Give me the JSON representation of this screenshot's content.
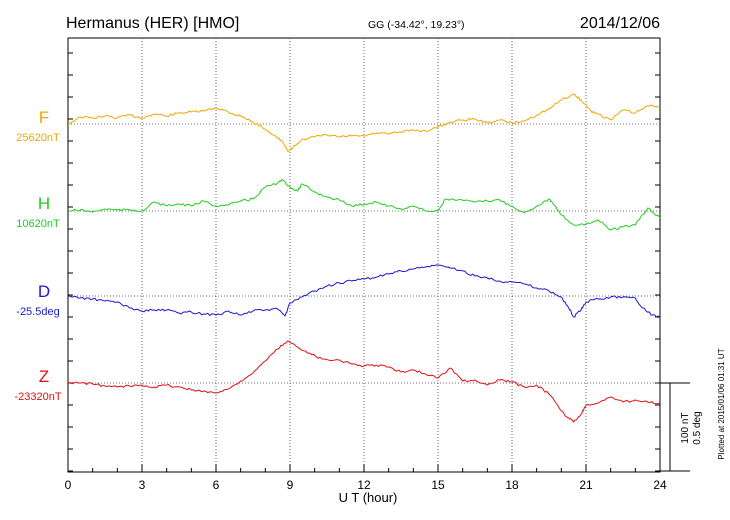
{
  "header": {
    "station": "Hermanus (HER)  [HMO]",
    "coords": "GG (-34.42°,  19.23°)",
    "date": "2014/12/06"
  },
  "side_note": "Plotted at 2015/01/06 01:31  UT",
  "chart_data": {
    "type": "line",
    "xlabel": "U T (hour)",
    "xlim": [
      0,
      24
    ],
    "xticks": [
      "0",
      "3",
      "6",
      "9",
      "12",
      "15",
      "18",
      "21",
      "24"
    ],
    "scale_bar": {
      "label_nt": "100 nT",
      "label_deg": "0.5 deg"
    },
    "series": [
      {
        "name": "F",
        "baseline_label": "25620nT",
        "color": "#f0a800",
        "points": [
          [
            0,
            0
          ],
          [
            0.5,
            -7
          ],
          [
            1,
            -6
          ],
          [
            1.5,
            -8
          ],
          [
            2,
            -6
          ],
          [
            2.5,
            -9
          ],
          [
            3,
            -6
          ],
          [
            3.5,
            -10
          ],
          [
            4,
            -8
          ],
          [
            4.5,
            -11
          ],
          [
            5,
            -12
          ],
          [
            5.5,
            -13
          ],
          [
            6,
            -16
          ],
          [
            6.3,
            -14
          ],
          [
            6.7,
            -10
          ],
          [
            7,
            -8
          ],
          [
            7.5,
            -2
          ],
          [
            8,
            5
          ],
          [
            8.4,
            12
          ],
          [
            8.7,
            18
          ],
          [
            8.9,
            27
          ],
          [
            9.1,
            24
          ],
          [
            9.5,
            15
          ],
          [
            10,
            13
          ],
          [
            10.5,
            11
          ],
          [
            11,
            13
          ],
          [
            11.5,
            12
          ],
          [
            12,
            12
          ],
          [
            12.5,
            9
          ],
          [
            13,
            10
          ],
          [
            13.5,
            8
          ],
          [
            14,
            6
          ],
          [
            14.5,
            7
          ],
          [
            15,
            3
          ],
          [
            15.5,
            -2
          ],
          [
            16,
            -4
          ],
          [
            16.5,
            -5
          ],
          [
            17,
            -1
          ],
          [
            17.5,
            -4
          ],
          [
            18,
            -1
          ],
          [
            18.5,
            -3
          ],
          [
            19,
            -9
          ],
          [
            19.5,
            -15
          ],
          [
            20,
            -24
          ],
          [
            20.5,
            -30
          ],
          [
            20.8,
            -24
          ],
          [
            21.2,
            -13
          ],
          [
            21.5,
            -10
          ],
          [
            22,
            -4
          ],
          [
            22.5,
            -14
          ],
          [
            23,
            -11
          ],
          [
            23.5,
            -18
          ],
          [
            24,
            -18
          ]
        ]
      },
      {
        "name": "H",
        "baseline_label": "10620nT",
        "color": "#22cc22",
        "points": [
          [
            0,
            0
          ],
          [
            0.5,
            -1
          ],
          [
            1,
            1
          ],
          [
            1.5,
            -2
          ],
          [
            2,
            -1
          ],
          [
            2.5,
            -1
          ],
          [
            3,
            0
          ],
          [
            3.5,
            -9
          ],
          [
            4,
            -5
          ],
          [
            4.5,
            -7
          ],
          [
            5,
            -5
          ],
          [
            5.5,
            -10
          ],
          [
            6,
            -5
          ],
          [
            6.5,
            -6
          ],
          [
            7,
            -10
          ],
          [
            7.5,
            -12
          ],
          [
            8,
            -24
          ],
          [
            8.5,
            -28
          ],
          [
            8.7,
            -31
          ],
          [
            9,
            -24
          ],
          [
            9.3,
            -20
          ],
          [
            9.5,
            -27
          ],
          [
            10,
            -19
          ],
          [
            10.5,
            -14
          ],
          [
            11,
            -11
          ],
          [
            11.5,
            -5
          ],
          [
            12,
            -7
          ],
          [
            12.5,
            -9
          ],
          [
            13,
            -5
          ],
          [
            13.5,
            -2
          ],
          [
            14,
            -5
          ],
          [
            14.5,
            0
          ],
          [
            15,
            0
          ],
          [
            15.3,
            -12
          ],
          [
            15.8,
            -11
          ],
          [
            16.5,
            -9
          ],
          [
            17,
            -10
          ],
          [
            17.5,
            -11
          ],
          [
            18,
            -5
          ],
          [
            18.5,
            2
          ],
          [
            19,
            -5
          ],
          [
            19.5,
            -12
          ],
          [
            19.7,
            -6
          ],
          [
            20,
            4
          ],
          [
            20.5,
            14
          ],
          [
            21,
            13
          ],
          [
            21.5,
            9
          ],
          [
            22,
            19
          ],
          [
            22.5,
            16
          ],
          [
            23,
            14
          ],
          [
            23.5,
            -3
          ],
          [
            24,
            7
          ]
        ]
      },
      {
        "name": "D",
        "baseline_label": "-25.5deg",
        "color": "#1a1acc",
        "points": [
          [
            0,
            0
          ],
          [
            0.5,
            2
          ],
          [
            1,
            3
          ],
          [
            1.5,
            5
          ],
          [
            2,
            6
          ],
          [
            2.5,
            12
          ],
          [
            3,
            15
          ],
          [
            3.5,
            14
          ],
          [
            4,
            14
          ],
          [
            4.5,
            17
          ],
          [
            5,
            16
          ],
          [
            5.5,
            18
          ],
          [
            6,
            19
          ],
          [
            6.5,
            15
          ],
          [
            7,
            19
          ],
          [
            7.5,
            15
          ],
          [
            8,
            14
          ],
          [
            8.5,
            13
          ],
          [
            8.8,
            20
          ],
          [
            9,
            7
          ],
          [
            9.5,
            1
          ],
          [
            10,
            -5
          ],
          [
            10.5,
            -10
          ],
          [
            11,
            -13
          ],
          [
            11.5,
            -15
          ],
          [
            12,
            -17
          ],
          [
            12.5,
            -19
          ],
          [
            13,
            -22
          ],
          [
            13.5,
            -25
          ],
          [
            14,
            -27
          ],
          [
            14.5,
            -29
          ],
          [
            15,
            -31
          ],
          [
            15.5,
            -28
          ],
          [
            16,
            -25
          ],
          [
            16.5,
            -20
          ],
          [
            17,
            -18
          ],
          [
            17.5,
            -15
          ],
          [
            18,
            -14
          ],
          [
            18.5,
            -12
          ],
          [
            19,
            -8
          ],
          [
            19.5,
            -5
          ],
          [
            20,
            1
          ],
          [
            20.3,
            12
          ],
          [
            20.5,
            21
          ],
          [
            20.8,
            14
          ],
          [
            21,
            6
          ],
          [
            21.5,
            3
          ],
          [
            22,
            1
          ],
          [
            22.5,
            1
          ],
          [
            23,
            2
          ],
          [
            23.3,
            12
          ],
          [
            23.7,
            19
          ],
          [
            24,
            21
          ]
        ]
      },
      {
        "name": "Z",
        "baseline_label": "-23320nT",
        "color": "#dd1111",
        "points": [
          [
            0,
            0
          ],
          [
            0.5,
            0
          ],
          [
            1,
            1
          ],
          [
            1.5,
            3
          ],
          [
            2,
            4
          ],
          [
            2.5,
            3
          ],
          [
            3,
            2
          ],
          [
            3.5,
            4
          ],
          [
            4,
            2
          ],
          [
            4.5,
            4
          ],
          [
            5,
            7
          ],
          [
            5.5,
            8
          ],
          [
            6,
            10
          ],
          [
            6.5,
            6
          ],
          [
            7,
            -2
          ],
          [
            7.5,
            -10
          ],
          [
            8,
            -22
          ],
          [
            8.5,
            -34
          ],
          [
            8.9,
            -42
          ],
          [
            9.3,
            -36
          ],
          [
            9.8,
            -30
          ],
          [
            10.3,
            -24
          ],
          [
            11,
            -23
          ],
          [
            11.5,
            -19
          ],
          [
            12,
            -17
          ],
          [
            12.5,
            -18
          ],
          [
            13,
            -16
          ],
          [
            13.5,
            -11
          ],
          [
            14,
            -13
          ],
          [
            14.5,
            -9
          ],
          [
            15,
            -5
          ],
          [
            15.5,
            -15
          ],
          [
            16,
            -2
          ],
          [
            16.5,
            -3
          ],
          [
            17,
            2
          ],
          [
            17.5,
            -3
          ],
          [
            18,
            -1
          ],
          [
            18.5,
            4
          ],
          [
            19,
            2
          ],
          [
            19.5,
            11
          ],
          [
            20,
            28
          ],
          [
            20.3,
            35
          ],
          [
            20.5,
            39
          ],
          [
            20.8,
            31
          ],
          [
            21,
            22
          ],
          [
            21.5,
            20
          ],
          [
            22,
            14
          ],
          [
            22.5,
            19
          ],
          [
            23,
            17
          ],
          [
            23.5,
            19
          ],
          [
            24,
            20
          ]
        ]
      }
    ]
  }
}
